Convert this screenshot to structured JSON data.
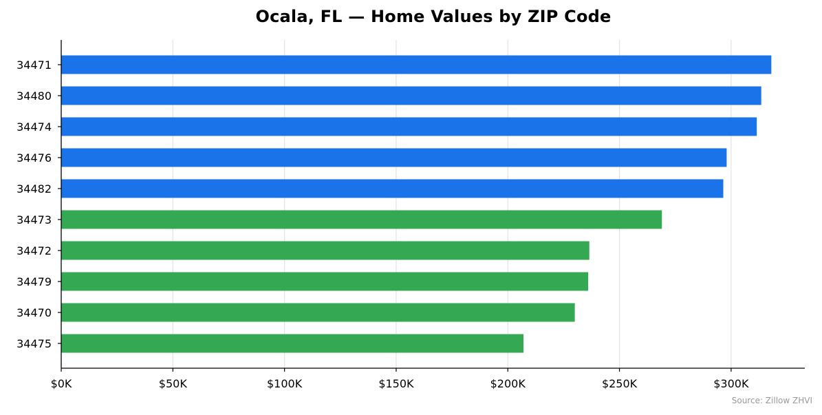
{
  "chart_data": {
    "type": "bar",
    "orientation": "horizontal",
    "title": "Ocala, FL — Home Values by ZIP Code",
    "xlabel": "",
    "ylabel": "",
    "xlim": [
      0,
      333000
    ],
    "grid": "vertical",
    "categories": [
      "34471",
      "34480",
      "34474",
      "34476",
      "34482",
      "34473",
      "34472",
      "34479",
      "34470",
      "34475"
    ],
    "values": [
      318000,
      313500,
      311500,
      298000,
      296500,
      269000,
      236500,
      236000,
      230000,
      207000
    ],
    "bar_colors": [
      "#1a73e8",
      "#1a73e8",
      "#1a73e8",
      "#1a73e8",
      "#1a73e8",
      "#34a853",
      "#34a853",
      "#34a853",
      "#34a853",
      "#34a853"
    ],
    "x_ticks": [
      0,
      50000,
      100000,
      150000,
      200000,
      250000,
      300000
    ],
    "x_tick_labels": [
      "$0K",
      "$50K",
      "$100K",
      "$150K",
      "$200K",
      "$250K",
      "$300K"
    ],
    "source": "Source: Zillow ZHVI"
  }
}
